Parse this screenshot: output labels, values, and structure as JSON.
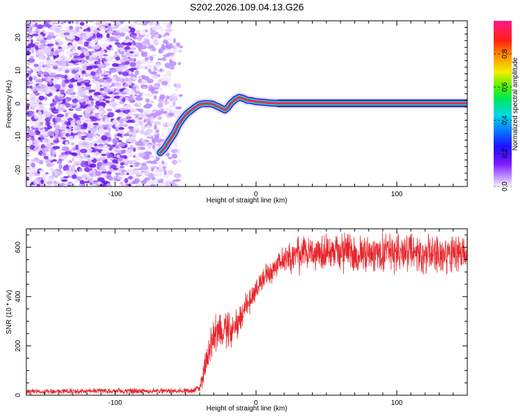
{
  "title": "S202.2026.109.04.13.G26",
  "chart_data": [
    {
      "type": "heatmap",
      "name": "spectrogram",
      "xlabel": "Height of straight line (km)",
      "ylabel": "Frequency (Hz)",
      "xlim": [
        -163,
        150
      ],
      "ylim": [
        -25,
        25
      ],
      "x_ticks": [
        -100,
        0,
        100
      ],
      "x_tick_labels": [
        "-100",
        "0",
        "100"
      ],
      "y_ticks": [
        -20,
        -10,
        0,
        10,
        20
      ],
      "y_tick_labels": [
        "-20",
        "-10",
        "0",
        "10",
        "20"
      ],
      "noise_region_x": [
        -163,
        -53
      ],
      "ridge_trace": [
        [
          -68,
          -14.8
        ],
        [
          -65,
          -13.6
        ],
        [
          -62,
          -11.5
        ],
        [
          -58,
          -9.0
        ],
        [
          -55,
          -6.3
        ],
        [
          -52,
          -4.5
        ],
        [
          -49,
          -3.0
        ],
        [
          -46,
          -2.0
        ],
        [
          -43,
          -1.0
        ],
        [
          -40,
          -0.2
        ],
        [
          -37,
          0.0
        ],
        [
          -34,
          0.0
        ],
        [
          -31,
          -0.1
        ],
        [
          -28,
          -0.7
        ],
        [
          -25,
          -1.3
        ],
        [
          -22,
          -1.9
        ],
        [
          -20,
          -1.2
        ],
        [
          -18,
          0.0
        ],
        [
          -15,
          1.2
        ],
        [
          -12,
          1.9
        ],
        [
          -9,
          1.6
        ],
        [
          -6,
          1.0
        ],
        [
          -3,
          0.9
        ],
        [
          0,
          0.6
        ],
        [
          3,
          0.5
        ],
        [
          6,
          0.4
        ],
        [
          10,
          0.2
        ],
        [
          15,
          0.1
        ],
        [
          25,
          0.1
        ],
        [
          150,
          0.1
        ]
      ],
      "colorbar": {
        "label": "Normalized spectral amplitude",
        "range": [
          0,
          1
        ],
        "ticks": [
          0.0,
          0.2,
          0.4,
          0.6,
          0.8
        ],
        "tick_labels": [
          "0.0",
          "0.2",
          "0.4",
          "0.6",
          "0.8"
        ]
      }
    },
    {
      "type": "line",
      "name": "snr",
      "xlabel": "Height of straight line (km)",
      "ylabel": "SNR (10 * v/v)",
      "xlim": [
        -163,
        150
      ],
      "ylim": [
        0,
        675
      ],
      "x_ticks": [
        -100,
        0,
        100
      ],
      "x_tick_labels": [
        "-100",
        "0",
        "100"
      ],
      "y_ticks": [
        0,
        200,
        400,
        600
      ],
      "y_tick_labels": [
        "0",
        "200",
        "400",
        "600"
      ],
      "series": [
        {
          "name": "SNR",
          "color": "#e8262b",
          "envelope_x": [
            -163,
            -45,
            -40,
            -37,
            -33,
            -28,
            -22,
            -15,
            -10,
            -5,
            0,
            5,
            10,
            15,
            20,
            25,
            30,
            40,
            50,
            60,
            80,
            100,
            120,
            150
          ],
          "envelope_mean": [
            15,
            18,
            30,
            90,
            200,
            260,
            270,
            280,
            320,
            380,
            430,
            470,
            500,
            530,
            550,
            560,
            570,
            578,
            580,
            580,
            575,
            575,
            575,
            575
          ],
          "envelope_spread": [
            12,
            14,
            20,
            80,
            100,
            110,
            100,
            90,
            70,
            60,
            60,
            60,
            60,
            65,
            70,
            80,
            90,
            90,
            90,
            90,
            90,
            90,
            90,
            90
          ]
        }
      ]
    }
  ],
  "colors": {
    "axis": "#000000",
    "line": "#e8262b",
    "ridge_core": "#e8266e",
    "ridge_mid": "#28d27a",
    "ridge_outer": "#3a1ae0",
    "noise": "#8a3cf0"
  }
}
